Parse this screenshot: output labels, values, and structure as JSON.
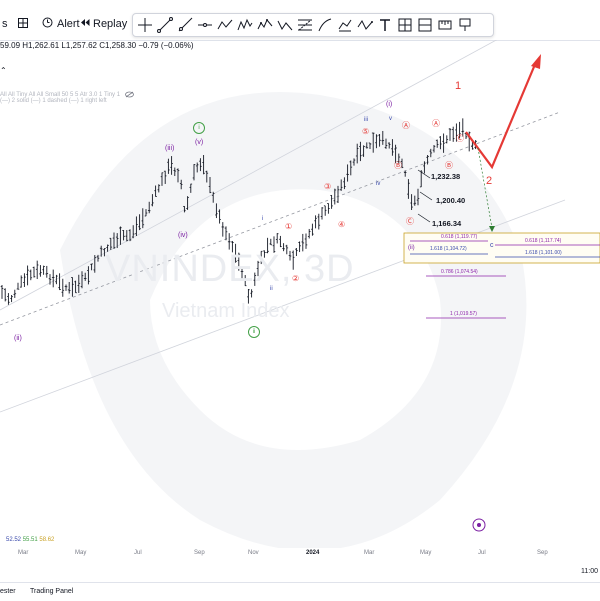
{
  "toolbar": {
    "left_fragment": "s",
    "alert_label": "Alert",
    "replay_label": "Replay"
  },
  "ohlc_line": {
    "text": "59.09 H1,262.61 L1,257.62 C1,258.30",
    "change": "−0.79 (−0.06%)"
  },
  "indicator_line": "All All Tiny All All Small 50 5 5 Atr 3.0 1 Tiny 1",
  "indicator_line2": "(—) 2 solid (—) 1 dashed (—) 1 right left",
  "watermark": {
    "symbol": "VNINDEX, 3D",
    "name": "Vietnam Index"
  },
  "price_labels": [
    "1,232.38",
    "1,200.40",
    "1,166.34"
  ],
  "fib_labels": {
    "left_1": "0.618 (1,119.77)",
    "left_2": "1.618 (1,104.72)",
    "right_1": "0.618 (1,117.74)",
    "right_2": "1.618 (1,101.00)",
    "f786": "0.786 (1,074.54)",
    "f1": "1 (1,019.57)",
    "ii_box": "(ii)"
  },
  "wave_labels": {
    "i_left": "i",
    "ii_left": "(ii)",
    "iii": "(iii)",
    "v_paren": "(v)",
    "iv_paren": "(iv)",
    "ii_green": "ii",
    "ii_black": "ii",
    "i_top": "i",
    "iii_top": "iii",
    "v_top": "v",
    "i_paren_top": "(i)",
    "iv_top": "iv",
    "one_red": "1",
    "two_red": "2",
    "c_label": "c",
    "w1": "①",
    "w2": "②",
    "w3": "③",
    "w4": "④",
    "w5": "⑤",
    "wa": "Ⓐ",
    "wb": "Ⓑ",
    "wc": "Ⓒ"
  },
  "x_axis": [
    "Mar",
    "May",
    "Jul",
    "Sep",
    "Nov",
    "2024",
    "Mar",
    "May",
    "Jul",
    "Sep"
  ],
  "bottom_tabs": [
    "ester",
    "Trading Panel"
  ],
  "clock": "11:00",
  "lower_values": [
    "52.52",
    "55.51",
    "58.62"
  ],
  "colors": {
    "accent_red": "#e53935",
    "purple": "#7b1fa2",
    "green": "#43a047",
    "fib_box_border": "#c9a227",
    "fib_purple": "#8e24aa",
    "fib_blue": "#3949ab"
  }
}
